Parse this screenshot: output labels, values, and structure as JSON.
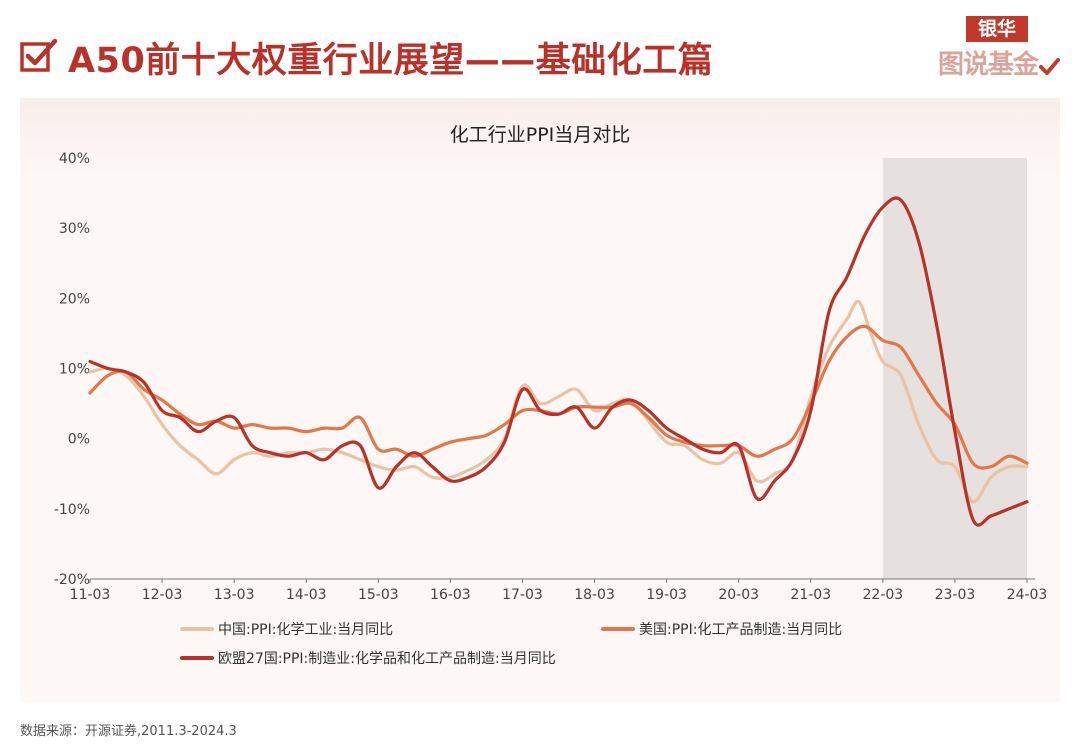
{
  "header": {
    "title": "A50前十大权重行业展望——基础化工篇",
    "icon": "checkbox-check-icon",
    "accent_color": "#b8322a"
  },
  "logo": {
    "top_text": "银华",
    "bottom_text": "图说基金"
  },
  "source_note": "数据来源：开源证券,2011.3-2024.3",
  "chart_data": {
    "type": "line",
    "title": "化工行业PPI当月对比",
    "xlabel": "",
    "ylabel": "",
    "x_ticks": [
      "11-03",
      "12-03",
      "13-03",
      "14-03",
      "15-03",
      "16-03",
      "17-03",
      "18-03",
      "19-03",
      "20-03",
      "21-03",
      "22-03",
      "23-03",
      "24-03"
    ],
    "x_range": [
      "2011-03",
      "2024-03"
    ],
    "y_ticks": [
      "40%",
      "30%",
      "20%",
      "10%",
      "0%",
      "-10%",
      "-20%"
    ],
    "ylim": [
      -20,
      40
    ],
    "y_unit": "%",
    "grid": false,
    "legend_position": "bottom",
    "shaded_region": {
      "from": "2022-03",
      "to": "2024-03",
      "color": "#e6e1df"
    },
    "series": [
      {
        "name": "中国:PPI:化学工业:当月同比",
        "color": "#e8c3a7",
        "points": [
          [
            "2011-03",
            9.5
          ],
          [
            "2011-06",
            10
          ],
          [
            "2011-09",
            9
          ],
          [
            "2011-12",
            6
          ],
          [
            "2012-03",
            2
          ],
          [
            "2012-06",
            -1
          ],
          [
            "2012-09",
            -3
          ],
          [
            "2012-12",
            -5
          ],
          [
            "2013-03",
            -3
          ],
          [
            "2013-06",
            -2
          ],
          [
            "2013-09",
            -2.5
          ],
          [
            "2013-12",
            -2
          ],
          [
            "2014-03",
            -2
          ],
          [
            "2014-06",
            -1.5
          ],
          [
            "2014-09",
            -2
          ],
          [
            "2014-12",
            -3
          ],
          [
            "2015-03",
            -4
          ],
          [
            "2015-06",
            -4.5
          ],
          [
            "2015-09",
            -4
          ],
          [
            "2015-12",
            -5.5
          ],
          [
            "2016-03",
            -5.5
          ],
          [
            "2016-06",
            -4.5
          ],
          [
            "2016-09",
            -3
          ],
          [
            "2016-12",
            0
          ],
          [
            "2017-03",
            7.5
          ],
          [
            "2017-06",
            5
          ],
          [
            "2017-09",
            6
          ],
          [
            "2017-12",
            7
          ],
          [
            "2018-03",
            4
          ],
          [
            "2018-06",
            5
          ],
          [
            "2018-09",
            5.5
          ],
          [
            "2018-12",
            2.5
          ],
          [
            "2019-03",
            -0.5
          ],
          [
            "2019-06",
            -1
          ],
          [
            "2019-09",
            -3
          ],
          [
            "2019-12",
            -3.5
          ],
          [
            "2020-03",
            -2
          ],
          [
            "2020-06",
            -6
          ],
          [
            "2020-09",
            -5
          ],
          [
            "2020-12",
            -3
          ],
          [
            "2021-03",
            6
          ],
          [
            "2021-06",
            13
          ],
          [
            "2021-09",
            17
          ],
          [
            "2021-11",
            19.5
          ],
          [
            "2022-01",
            15
          ],
          [
            "2022-03",
            11
          ],
          [
            "2022-06",
            9
          ],
          [
            "2022-09",
            2
          ],
          [
            "2022-12",
            -3
          ],
          [
            "2023-03",
            -4
          ],
          [
            "2023-06",
            -9
          ],
          [
            "2023-09",
            -5.5
          ],
          [
            "2023-12",
            -4
          ],
          [
            "2024-03",
            -4
          ]
        ]
      },
      {
        "name": "美国:PPI:化工产品制造:当月同比",
        "color": "#e2784a",
        "points": [
          [
            "2011-03",
            6.5
          ],
          [
            "2011-06",
            9
          ],
          [
            "2011-09",
            9.5
          ],
          [
            "2011-12",
            7
          ],
          [
            "2012-03",
            5.5
          ],
          [
            "2012-06",
            3.5
          ],
          [
            "2012-09",
            2
          ],
          [
            "2012-12",
            2.5
          ],
          [
            "2013-03",
            1.5
          ],
          [
            "2013-06",
            2
          ],
          [
            "2013-09",
            1.5
          ],
          [
            "2013-12",
            1.5
          ],
          [
            "2014-03",
            1
          ],
          [
            "2014-06",
            1.5
          ],
          [
            "2014-09",
            1.5
          ],
          [
            "2014-12",
            3
          ],
          [
            "2015-03",
            -1.5
          ],
          [
            "2015-06",
            -1.5
          ],
          [
            "2015-09",
            -2.5
          ],
          [
            "2015-12",
            -1.5
          ],
          [
            "2016-03",
            -0.5
          ],
          [
            "2016-06",
            0
          ],
          [
            "2016-09",
            0.5
          ],
          [
            "2016-12",
            2
          ],
          [
            "2017-03",
            4
          ],
          [
            "2017-06",
            4
          ],
          [
            "2017-09",
            3.5
          ],
          [
            "2017-12",
            4.5
          ],
          [
            "2018-03",
            4.5
          ],
          [
            "2018-06",
            4.5
          ],
          [
            "2018-09",
            5
          ],
          [
            "2018-12",
            3
          ],
          [
            "2019-03",
            0.5
          ],
          [
            "2019-06",
            -0.5
          ],
          [
            "2019-09",
            -1
          ],
          [
            "2019-12",
            -1
          ],
          [
            "2020-03",
            -1
          ],
          [
            "2020-06",
            -2.5
          ],
          [
            "2020-09",
            -1.5
          ],
          [
            "2020-12",
            0
          ],
          [
            "2021-03",
            5
          ],
          [
            "2021-06",
            11
          ],
          [
            "2021-09",
            14.5
          ],
          [
            "2021-12",
            16
          ],
          [
            "2022-03",
            14
          ],
          [
            "2022-06",
            13
          ],
          [
            "2022-09",
            9
          ],
          [
            "2022-12",
            5
          ],
          [
            "2023-03",
            2
          ],
          [
            "2023-06",
            -3.5
          ],
          [
            "2023-09",
            -4
          ],
          [
            "2023-12",
            -2.5
          ],
          [
            "2024-03",
            -3.5
          ]
        ]
      },
      {
        "name": "欧盟27国:PPI:制造业:化学品和化工产品制造:当月同比",
        "color": "#b8322a",
        "points": [
          [
            "2011-03",
            11
          ],
          [
            "2011-06",
            10
          ],
          [
            "2011-09",
            9.5
          ],
          [
            "2011-12",
            8
          ],
          [
            "2012-03",
            4
          ],
          [
            "2012-06",
            3
          ],
          [
            "2012-09",
            1
          ],
          [
            "2012-12",
            2.5
          ],
          [
            "2013-03",
            3
          ],
          [
            "2013-06",
            -1
          ],
          [
            "2013-09",
            -2
          ],
          [
            "2013-12",
            -2.5
          ],
          [
            "2014-03",
            -2
          ],
          [
            "2014-06",
            -3
          ],
          [
            "2014-09",
            -1
          ],
          [
            "2014-12",
            -1
          ],
          [
            "2015-03",
            -7
          ],
          [
            "2015-06",
            -4
          ],
          [
            "2015-09",
            -2
          ],
          [
            "2015-12",
            -4
          ],
          [
            "2016-03",
            -6
          ],
          [
            "2016-06",
            -5.5
          ],
          [
            "2016-09",
            -4
          ],
          [
            "2016-12",
            -0.5
          ],
          [
            "2017-03",
            7
          ],
          [
            "2017-06",
            4
          ],
          [
            "2017-09",
            3.5
          ],
          [
            "2017-12",
            4.5
          ],
          [
            "2018-03",
            1.5
          ],
          [
            "2018-06",
            4.5
          ],
          [
            "2018-09",
            5.5
          ],
          [
            "2018-12",
            4
          ],
          [
            "2019-03",
            1.5
          ],
          [
            "2019-06",
            0
          ],
          [
            "2019-09",
            -1.5
          ],
          [
            "2019-12",
            -2
          ],
          [
            "2020-03",
            -1
          ],
          [
            "2020-06",
            -8.5
          ],
          [
            "2020-09",
            -6
          ],
          [
            "2020-12",
            -3
          ],
          [
            "2021-03",
            4
          ],
          [
            "2021-06",
            18
          ],
          [
            "2021-09",
            23
          ],
          [
            "2021-12",
            29
          ],
          [
            "2022-03",
            33
          ],
          [
            "2022-06",
            34
          ],
          [
            "2022-09",
            28
          ],
          [
            "2022-12",
            16
          ],
          [
            "2023-03",
            1
          ],
          [
            "2023-06",
            -11.5
          ],
          [
            "2023-09",
            -11
          ],
          [
            "2023-12",
            -10
          ],
          [
            "2024-03",
            -9
          ]
        ]
      }
    ]
  }
}
